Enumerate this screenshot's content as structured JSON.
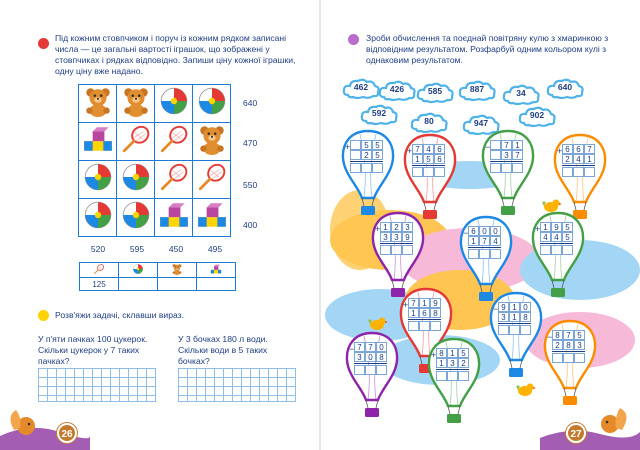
{
  "left_page": {
    "task1": {
      "text": "Під кожним стовпчиком і поруч із кожним рядком записані числа — це загальні вартості іграшок, що зображені у стовпчиках і рядках відповідно. Запиши ціну кожної іграшки, одну ціну вже надано.",
      "grid": [
        [
          "bear",
          "bear",
          "ball",
          "ball"
        ],
        [
          "blocks",
          "racket",
          "racket",
          "bear"
        ],
        [
          "ball",
          "ball",
          "racket",
          "racket"
        ],
        [
          "ball",
          "ball",
          "blocks",
          "blocks"
        ]
      ],
      "row_sums": [
        "640",
        "470",
        "550",
        "400"
      ],
      "col_sums": [
        "520",
        "595",
        "450",
        "495"
      ],
      "price_table": {
        "icons": [
          "racket",
          "ball",
          "bear",
          "blocks"
        ],
        "values": [
          "125",
          "",
          "",
          ""
        ]
      }
    },
    "task2": {
      "text": "Розв'яжи задачі, склавши вираз.",
      "problem_a": "У п'яти пачках 100 цукерок. Скільки цукерок у 7 таких пачках?",
      "problem_b": "У 3 бочках 180 л води. Скільки води в 5 таких бочках?"
    },
    "page_number": "26"
  },
  "right_page": {
    "task": {
      "text": "Зроби обчислення та поєднай повітряну кулю з хмаринкою з відповідним результатом. Розфарбуй одним кольором кулі з однаковим результатом."
    },
    "clouds": [
      "462",
      "426",
      "585",
      "887",
      "34",
      "640",
      "592",
      "80",
      "947",
      "902"
    ],
    "balloons": [
      {
        "op": "+",
        "a": [
          "",
          "5",
          "5"
        ],
        "b": [
          "",
          "2",
          "5"
        ],
        "r": [
          "",
          "",
          ""
        ]
      },
      {
        "op": "+",
        "a": [
          "7",
          "4",
          "6"
        ],
        "b": [
          "1",
          "5",
          "6"
        ],
        "r": [
          "",
          "",
          ""
        ]
      },
      {
        "op": "−",
        "a": [
          "",
          "7",
          "1"
        ],
        "b": [
          "",
          "3",
          "7"
        ],
        "r": [
          "",
          "",
          ""
        ]
      },
      {
        "op": "+",
        "a": [
          "6",
          "6",
          "7"
        ],
        "b": [
          "2",
          "4",
          "1"
        ],
        "r": [
          "",
          "",
          ""
        ]
      },
      {
        "op": "+",
        "a": [
          "1",
          "2",
          "3"
        ],
        "b": [
          "3",
          "3",
          "9"
        ],
        "r": [
          "",
          "",
          ""
        ]
      },
      {
        "op": "−",
        "a": [
          "6",
          "0",
          "0"
        ],
        "b": [
          "1",
          "7",
          "4"
        ],
        "r": [
          "",
          "",
          ""
        ]
      },
      {
        "op": "+",
        "a": [
          "1",
          "9",
          "5"
        ],
        "b": [
          "4",
          "4",
          "5"
        ],
        "r": [
          "",
          "",
          ""
        ]
      },
      {
        "op": "+",
        "a": [
          "7",
          "1",
          "9"
        ],
        "b": [
          "1",
          "6",
          "8"
        ],
        "r": [
          "",
          "",
          ""
        ]
      },
      {
        "op": "−",
        "a": [
          "9",
          "1",
          "0"
        ],
        "b": [
          "3",
          "1",
          "8"
        ],
        "r": [
          "",
          "",
          ""
        ]
      },
      {
        "op": "−",
        "a": [
          "7",
          "7",
          "0"
        ],
        "b": [
          "3",
          "0",
          "8"
        ],
        "r": [
          "",
          "",
          ""
        ]
      },
      {
        "op": "+",
        "a": [
          "8",
          "1",
          "5"
        ],
        "b": [
          "1",
          "3",
          "2"
        ],
        "r": [
          "",
          "",
          ""
        ]
      },
      {
        "op": "−",
        "a": [
          "8",
          "7",
          "5"
        ],
        "b": [
          "2",
          "8",
          "3"
        ],
        "r": [
          "",
          "",
          ""
        ]
      }
    ],
    "balloon_colors": [
      "#1e88e5",
      "#e53935",
      "#43a047",
      "#fb8c00",
      "#8e24aa",
      "#1e88e5",
      "#43a047",
      "#e53935",
      "#1e88e5",
      "#8e24aa",
      "#43a047",
      "#fb8c00"
    ],
    "page_number": "27"
  },
  "colors": {
    "text": "#1f3e84",
    "grid_border": "#1d7bd6",
    "bullet_task1": "#e53935",
    "bullet_task2": "#ffd400",
    "bullet_right": "#b96cc9",
    "cloud": "#4fb3ea",
    "sky_pink": "#f7b9d8",
    "sky_orange": "#ffc552",
    "sky_blue": "#a3d6f5"
  }
}
